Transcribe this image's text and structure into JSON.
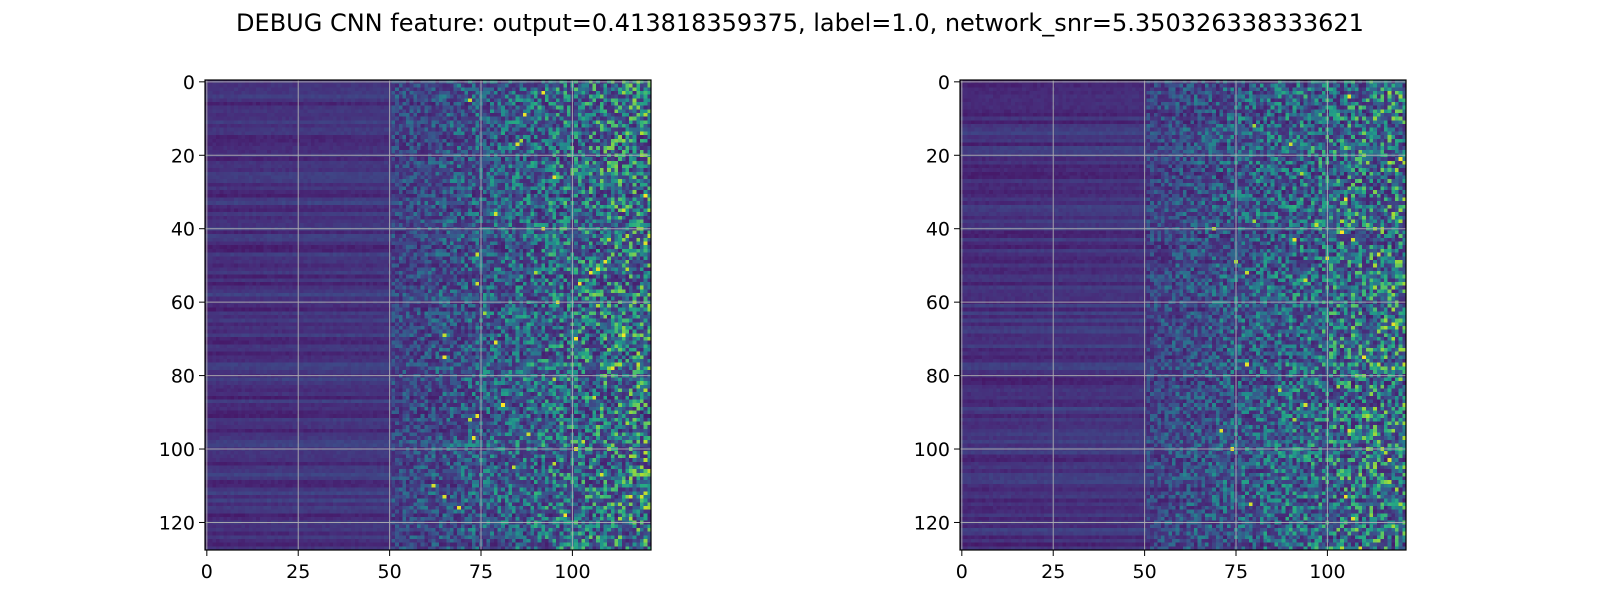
{
  "figure": {
    "title": "DEBUG CNN feature: output=0.413818359375, label=1.0, network_snr=5.350326338333621"
  },
  "chart_data": [
    {
      "type": "heatmap",
      "title": "",
      "xlabel": "",
      "ylabel": "",
      "colormap": "viridis",
      "rows": 128,
      "cols": 122,
      "xlim": [
        -0.5,
        121.5
      ],
      "ylim": [
        127.5,
        -0.5
      ],
      "xticks": [
        0,
        25,
        50,
        75,
        100
      ],
      "xtick_labels": [
        "0",
        "25",
        "50",
        "75",
        "100"
      ],
      "yticks": [
        0,
        20,
        40,
        60,
        80,
        100,
        120
      ],
      "ytick_labels": [
        "0",
        "20",
        "40",
        "60",
        "80",
        "100",
        "120"
      ],
      "grid": true,
      "pattern": "low values at columns 0-50 with horizontal banding, increasingly noisy high values toward columns 75-121"
    },
    {
      "type": "heatmap",
      "title": "",
      "xlabel": "",
      "ylabel": "",
      "colormap": "viridis",
      "rows": 128,
      "cols": 122,
      "xlim": [
        -0.5,
        121.5
      ],
      "ylim": [
        127.5,
        -0.5
      ],
      "xticks": [
        0,
        25,
        50,
        75,
        100
      ],
      "xtick_labels": [
        "0",
        "25",
        "50",
        "75",
        "100"
      ],
      "yticks": [
        0,
        20,
        40,
        60,
        80,
        100,
        120
      ],
      "ytick_labels": [
        "0",
        "20",
        "40",
        "60",
        "80",
        "100",
        "120"
      ],
      "grid": true,
      "pattern": "low values at columns 0-50 with horizontal banding, increasingly noisy high values toward columns 75-121"
    }
  ]
}
